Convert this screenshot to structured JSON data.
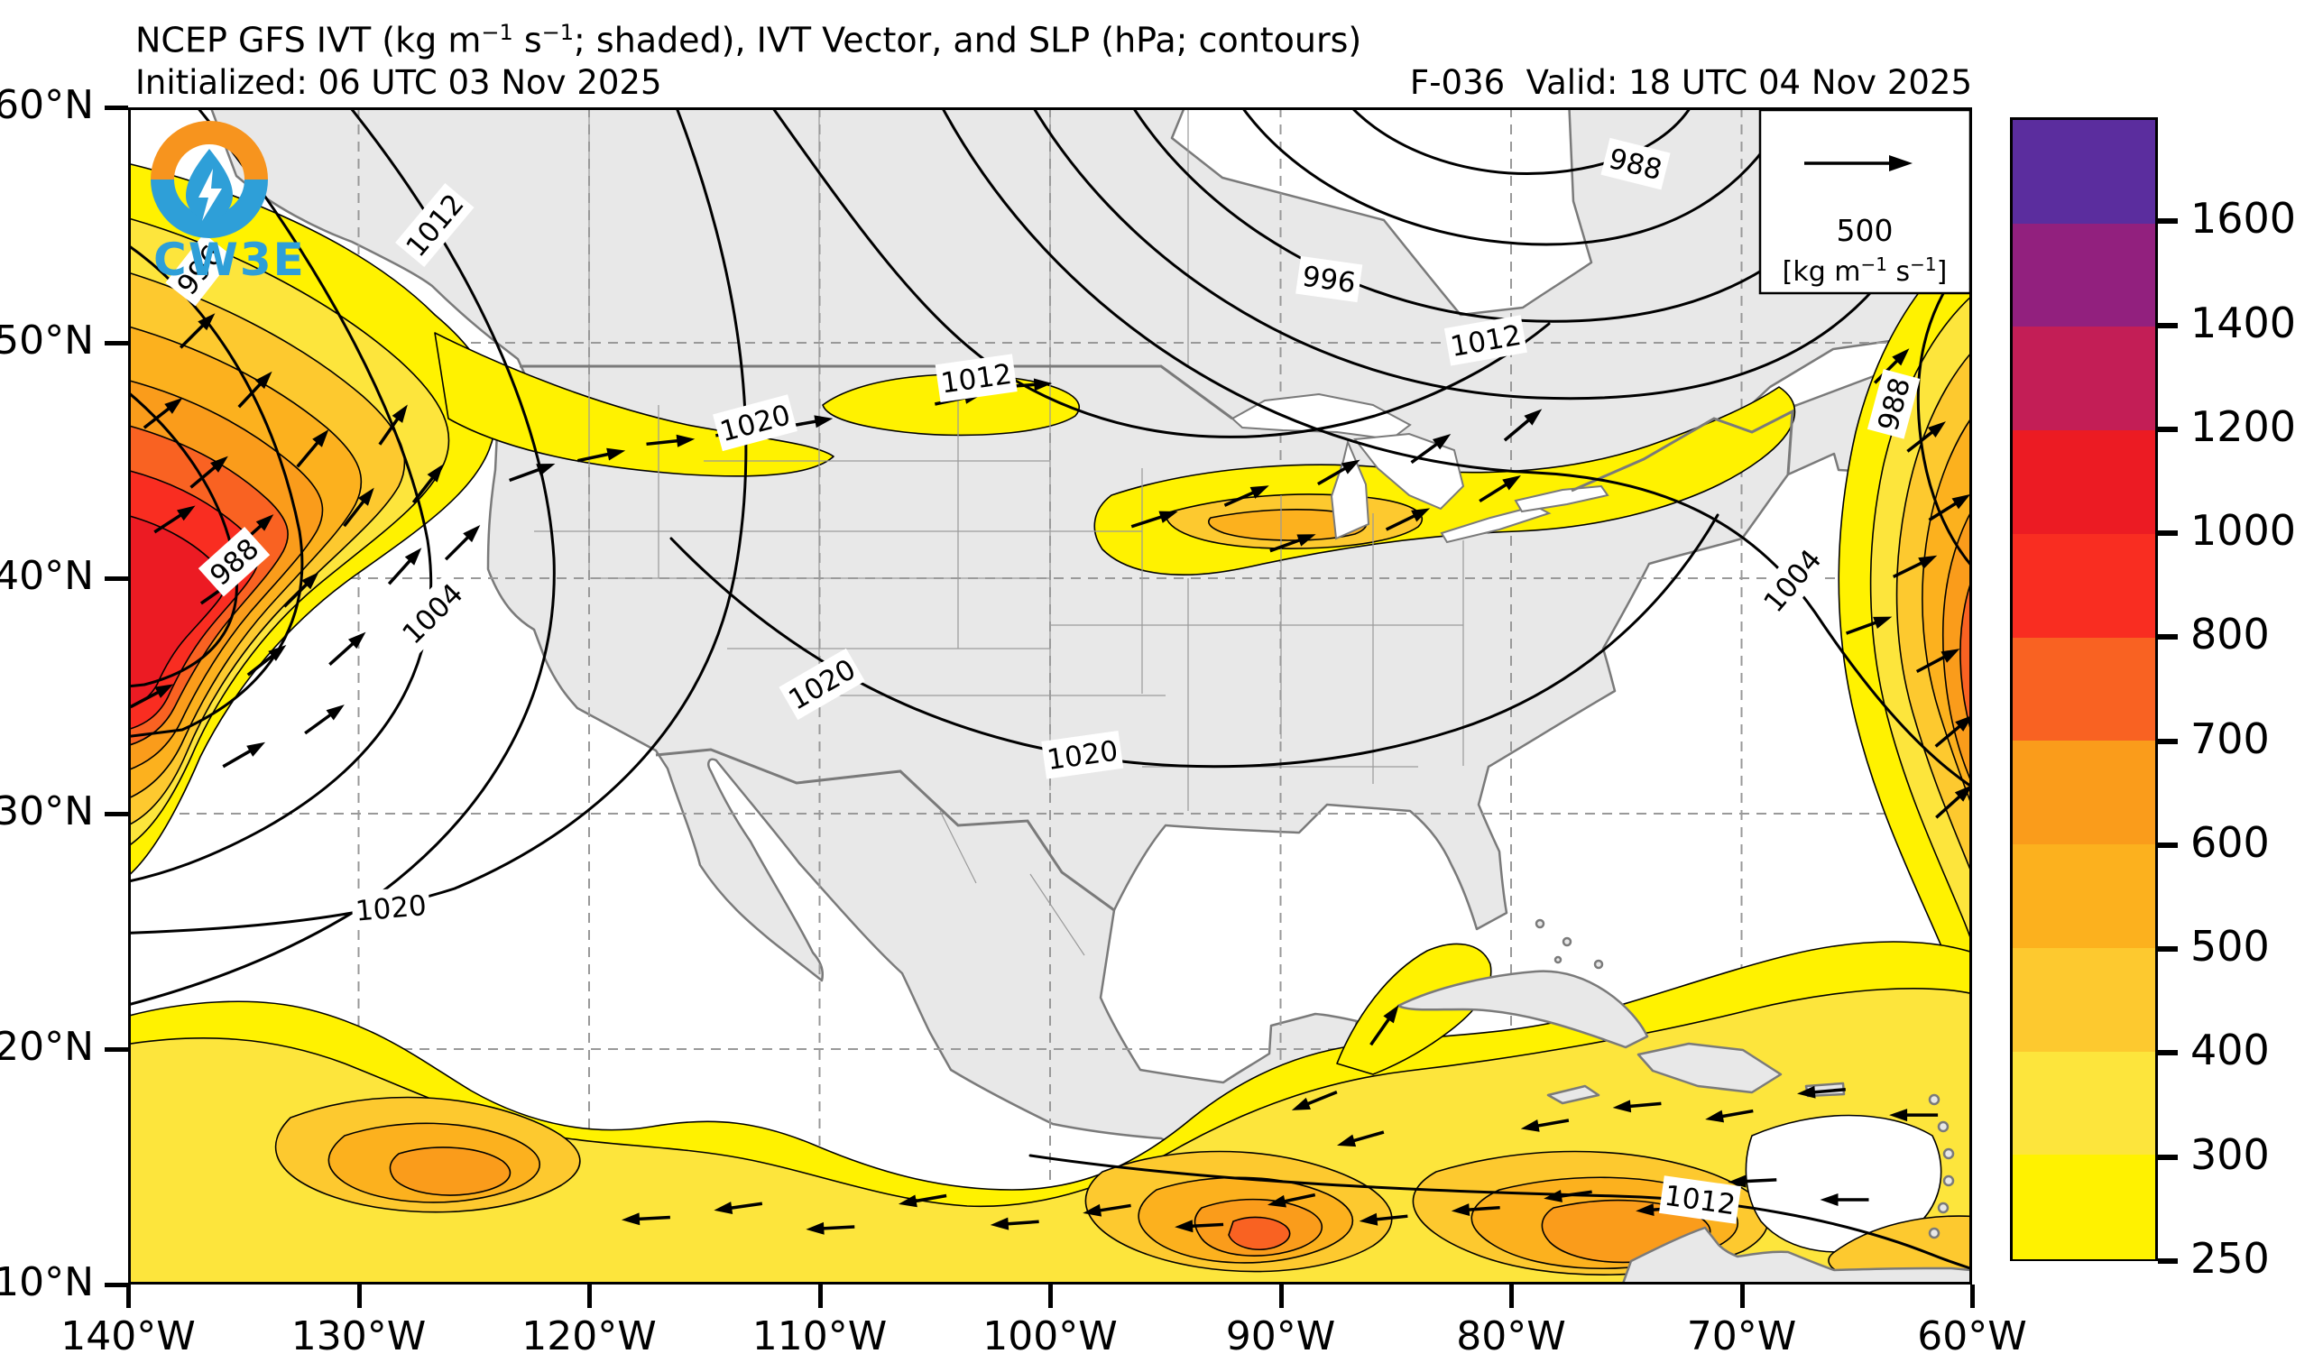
{
  "header": {
    "title_p1": "NCEP GFS IVT (kg m",
    "title_sup1": "−1",
    "title_p2": " s",
    "title_sup2": "−1",
    "title_p3": "; shaded), IVT Vector, and SLP (hPa; contours)",
    "initialized": "Initialized: 06 UTC 03 Nov 2025",
    "forecast": "F-036  Valid: 18 UTC 04 Nov 2025"
  },
  "branding": {
    "logo_text": "CW3E",
    "logo_orange": "#F7941E",
    "logo_blue": "#2E9FD8"
  },
  "ref_vector": {
    "value": "500",
    "unit_p1": "[kg m",
    "unit_sup1": "−1",
    "unit_p2": " s",
    "unit_sup2": "−1",
    "unit_p3": "]"
  },
  "map_extent": {
    "lon_min": -140,
    "lon_max": -60,
    "lat_min": 10,
    "lat_max": 60
  },
  "axes": {
    "lat_ticks": [
      {
        "label": "60°N",
        "deg": 60
      },
      {
        "label": "50°N",
        "deg": 50
      },
      {
        "label": "40°N",
        "deg": 40
      },
      {
        "label": "30°N",
        "deg": 30
      },
      {
        "label": "20°N",
        "deg": 20
      },
      {
        "label": "10°N",
        "deg": 10
      }
    ],
    "lon_ticks": [
      {
        "label": "140°W",
        "deg": -140
      },
      {
        "label": "130°W",
        "deg": -130
      },
      {
        "label": "120°W",
        "deg": -120
      },
      {
        "label": "110°W",
        "deg": -110
      },
      {
        "label": "100°W",
        "deg": -100
      },
      {
        "label": "90°W",
        "deg": -90
      },
      {
        "label": "80°W",
        "deg": -80
      },
      {
        "label": "70°W",
        "deg": -70
      },
      {
        "label": "60°W",
        "deg": -60
      }
    ],
    "grid_lons": [
      -130,
      -120,
      -110,
      -100,
      -90,
      -80,
      -70
    ],
    "grid_lats": [
      20,
      30,
      40,
      50
    ]
  },
  "colorbar": {
    "levels": [
      250,
      300,
      400,
      500,
      600,
      700,
      800,
      1000,
      1200,
      1400,
      1600
    ],
    "colors": [
      "#FFF200",
      "#FDE53C",
      "#FDC92F",
      "#FCB11E",
      "#FA9C1B",
      "#F96222",
      "#F92D21",
      "#EC1B23",
      "#C31E56",
      "#92207E",
      "#5B2D9E"
    ],
    "tick_labels_top_down": [
      "1600",
      "1400",
      "1200",
      "1000",
      "800",
      "700",
      "600",
      "500",
      "400",
      "300",
      "250"
    ]
  },
  "slp_labels": [
    {
      "value": "996",
      "lon": -136.9,
      "lat": 53.1,
      "rot": -52
    },
    {
      "value": "1012",
      "lon": -126.7,
      "lat": 55.0,
      "rot": -50
    },
    {
      "value": "988",
      "lon": -135.4,
      "lat": 40.7,
      "rot": -42
    },
    {
      "value": "1004",
      "lon": -126.8,
      "lat": 38.5,
      "rot": -45
    },
    {
      "value": "1020",
      "lon": -112.8,
      "lat": 46.6,
      "rot": -15
    },
    {
      "value": "1012",
      "lon": -103.2,
      "lat": 48.5,
      "rot": -8
    },
    {
      "value": "996",
      "lon": -87.9,
      "lat": 52.7,
      "rot": 8
    },
    {
      "value": "988",
      "lon": -74.6,
      "lat": 57.6,
      "rot": 14
    },
    {
      "value": "1012",
      "lon": -81.1,
      "lat": 50.1,
      "rot": -10
    },
    {
      "value": "1004",
      "lon": -67.8,
      "lat": 39.9,
      "rot": -50
    },
    {
      "value": "988",
      "lon": -63.4,
      "lat": 47.4,
      "rot": -75
    },
    {
      "value": "1020",
      "lon": -109.9,
      "lat": 35.5,
      "rot": -30
    },
    {
      "value": "1020",
      "lon": -98.6,
      "lat": 32.5,
      "rot": -8
    },
    {
      "value": "1020",
      "lon": -128.6,
      "lat": 26.0,
      "rot": -5
    },
    {
      "value": "1012",
      "lon": -71.8,
      "lat": 13.6,
      "rot": 8
    }
  ],
  "ivt_vectors": [
    [
      -138.5,
      47,
      38
    ],
    [
      -136.5,
      44.5,
      40
    ],
    [
      -134.5,
      42,
      42
    ],
    [
      -132.5,
      39.5,
      45
    ],
    [
      -130.5,
      37,
      42
    ],
    [
      -137,
      50.5,
      45
    ],
    [
      -134.5,
      48,
      47
    ],
    [
      -132,
      45.5,
      50
    ],
    [
      -130,
      43,
      52
    ],
    [
      -128,
      40.5,
      48
    ],
    [
      -126.5,
      38.5,
      40
    ],
    [
      -138,
      42.5,
      33
    ],
    [
      -136,
      39.5,
      35
    ],
    [
      -134,
      36.5,
      38
    ],
    [
      -131.5,
      34,
      36
    ],
    [
      -139,
      35,
      28
    ],
    [
      -135,
      32.5,
      30
    ],
    [
      -128.5,
      46.5,
      55
    ],
    [
      -127,
      44,
      52
    ],
    [
      -125.5,
      41.5,
      45
    ],
    [
      -122.5,
      44.5,
      20
    ],
    [
      -119.5,
      45.2,
      12
    ],
    [
      -116.5,
      45.8,
      6
    ],
    [
      -113.5,
      46.2,
      8
    ],
    [
      -110.5,
      46.6,
      10
    ],
    [
      -104,
      47.6,
      12
    ],
    [
      -101,
      48.2,
      4
    ],
    [
      -95.5,
      42.5,
      18
    ],
    [
      -91.5,
      43.5,
      24
    ],
    [
      -87.5,
      44.5,
      30
    ],
    [
      -83.5,
      45.5,
      36
    ],
    [
      -79.5,
      46.5,
      40
    ],
    [
      -89.5,
      41.5,
      20
    ],
    [
      -84.5,
      42.5,
      26
    ],
    [
      -80.5,
      43.8,
      32
    ],
    [
      -63.5,
      49,
      45
    ],
    [
      -62,
      46,
      38
    ],
    [
      -61,
      43,
      32
    ],
    [
      -62.5,
      40.5,
      26
    ],
    [
      -64.5,
      38,
      20
    ],
    [
      -61.5,
      36.5,
      28
    ],
    [
      -60.8,
      33.5,
      40
    ],
    [
      -60.8,
      30.5,
      42
    ],
    [
      -117.5,
      12.8,
      183
    ],
    [
      -113.5,
      13.3,
      188
    ],
    [
      -109.5,
      12.4,
      183
    ],
    [
      -105.5,
      13.6,
      190
    ],
    [
      -101.5,
      12.6,
      184
    ],
    [
      -97.5,
      13.2,
      189
    ],
    [
      -93.5,
      12.5,
      183
    ],
    [
      -89.5,
      13.6,
      192
    ],
    [
      -85.5,
      12.8,
      186
    ],
    [
      -81.5,
      13.2,
      184
    ],
    [
      -77.5,
      13.8,
      188
    ],
    [
      -73.5,
      13.2,
      184
    ],
    [
      -69.5,
      14.4,
      183
    ],
    [
      -65.5,
      13.6,
      180
    ],
    [
      -78.5,
      16.8,
      190
    ],
    [
      -74.5,
      17.6,
      185
    ],
    [
      -70.5,
      17.2,
      190
    ],
    [
      -66.5,
      18.2,
      185
    ],
    [
      -62.5,
      17.2,
      180
    ],
    [
      -86.5,
      16.2,
      196
    ],
    [
      -88.5,
      17.8,
      202
    ],
    [
      -85.5,
      21,
      55
    ]
  ]
}
